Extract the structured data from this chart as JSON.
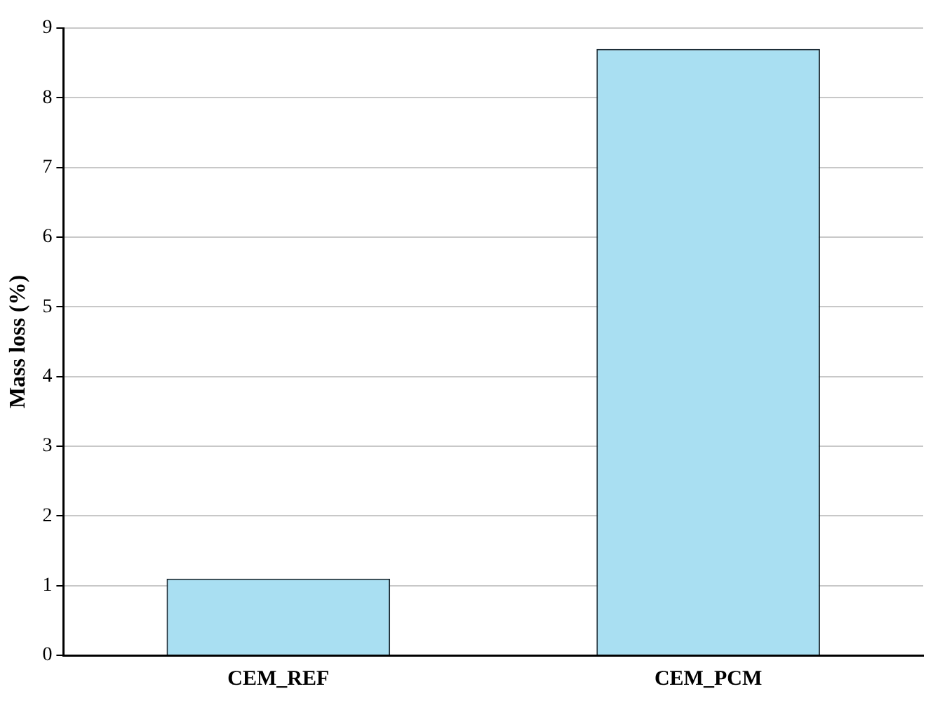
{
  "chart_data": {
    "type": "bar",
    "ylabel": "Mass loss (%)",
    "categories": [
      "CEM_REF",
      "CEM_PCM"
    ],
    "values": [
      1.1,
      8.7
    ],
    "color": "#a9dff2",
    "ylim": [
      0,
      9
    ],
    "yticks": [
      0,
      1,
      2,
      3,
      4,
      5,
      6,
      7,
      8,
      9
    ],
    "grid": "y"
  }
}
